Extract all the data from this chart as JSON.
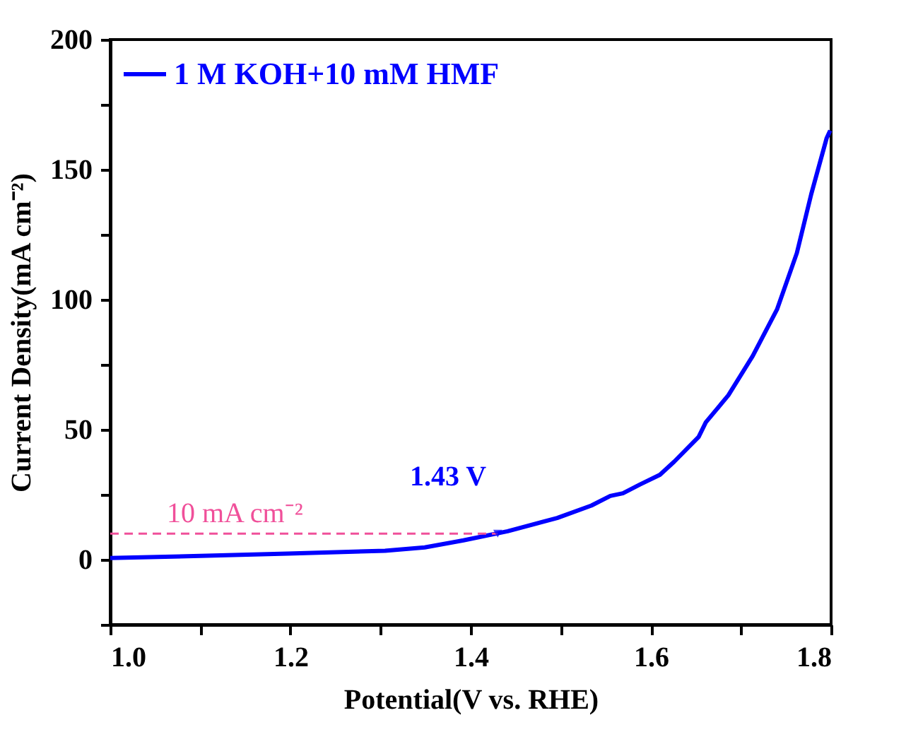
{
  "chart_data": {
    "type": "line",
    "xlabel": "Potential(V vs. RHE)",
    "ylabel": "Current Density(mA cm⁻²)",
    "xlim": [
      1.0,
      1.8
    ],
    "xticks": [
      {
        "value": 1,
        "label": "1.0"
      },
      {
        "value": 1.1,
        "label": null
      },
      1.2,
      {
        "value": 1.3,
        "label": null
      },
      1.4,
      {
        "value": 1.5,
        "label": null
      },
      1.6,
      {
        "value": 1.7,
        "label": null
      },
      1.8
    ],
    "ylim": [
      -25,
      200
    ],
    "yticks": [
      {
        "value": -25,
        "label": null
      },
      0,
      {
        "value": 25,
        "label": null
      },
      50,
      {
        "value": 75,
        "label": null
      },
      100,
      {
        "value": 125,
        "label": null
      },
      150,
      {
        "value": 175,
        "label": null
      },
      200
    ],
    "grid": false,
    "legend": "top left",
    "line_style": "solid",
    "marker": "none",
    "series": [
      {
        "name": "1 M KOH+10 mM HMF",
        "color": "#0000ff",
        "x": [
          1.0,
          1.1,
          1.197,
          1.305,
          1.349,
          1.392,
          1.441,
          1.496,
          1.534,
          1.555,
          1.569,
          1.588,
          1.61,
          1.626,
          1.653,
          1.661,
          1.686,
          1.713,
          1.74,
          1.762,
          1.778,
          1.795,
          1.799
        ],
        "values": [
          0.6,
          1.4,
          2.3,
          3.4,
          4.7,
          7.4,
          10.9,
          16,
          20.8,
          24.5,
          25.5,
          28.9,
          32.6,
          37.7,
          47.2,
          52.8,
          63.2,
          78.3,
          96.2,
          117.9,
          140.6,
          162,
          165
        ]
      }
    ],
    "ref_lines": [
      {
        "axis": "y",
        "value": 10,
        "label": "10 mA cm⁻²",
        "color": "#f0509a",
        "line_style": "dashed"
      }
    ],
    "annotations": [
      {
        "text": "1.43 V",
        "x": 1.43,
        "y": 10
      }
    ]
  }
}
